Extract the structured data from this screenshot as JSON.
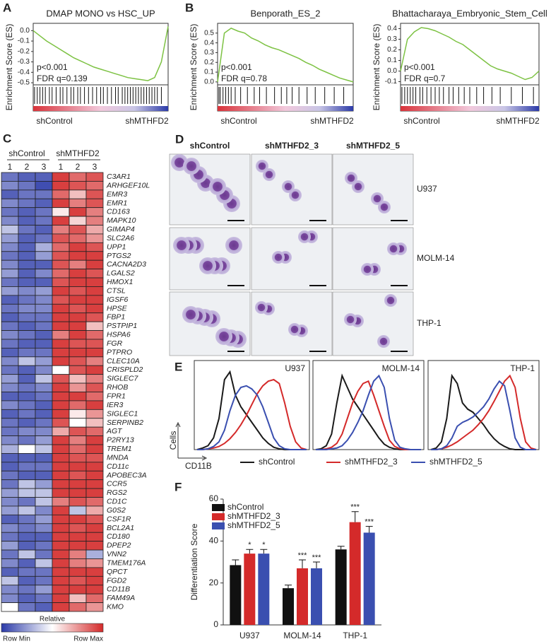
{
  "chart_data": [
    {
      "type": "gsea",
      "panel": "A",
      "title": "DMAP MONO vs HSC_UP",
      "ylabel": "Enrichment Score (ES)",
      "ylim": [
        -0.52,
        0.07
      ],
      "yticks": [
        {
          "value": 0,
          "label": "0.0"
        },
        -0.1,
        -0.2,
        -0.3,
        -0.4,
        -0.5
      ],
      "color": "#7dc243",
      "annotations": [
        "p<0.001",
        "FDR q=0.139"
      ],
      "xlabels": [
        "shControl",
        "shMTHFD2"
      ],
      "values": [
        0,
        -0.05,
        -0.1,
        -0.14,
        -0.18,
        -0.22,
        -0.26,
        -0.29,
        -0.32,
        -0.35,
        -0.37,
        -0.39,
        -0.41,
        -0.43,
        -0.45,
        -0.46,
        -0.47,
        -0.48,
        -0.45,
        -0.3,
        0.04
      ],
      "hits": [
        0.01,
        0.03,
        0.05,
        0.07,
        0.09,
        0.12,
        0.14,
        0.17,
        0.2,
        0.22,
        0.25,
        0.28,
        0.3,
        0.33,
        0.35,
        0.38,
        0.41,
        0.44,
        0.47,
        0.5,
        0.52,
        0.55,
        0.58,
        0.61,
        0.63,
        0.66,
        0.68,
        0.7,
        0.72,
        0.74,
        0.76,
        0.78,
        0.8,
        0.82,
        0.84,
        0.86,
        0.88,
        0.9,
        0.92,
        0.95
      ]
    },
    {
      "type": "gsea",
      "panel": "B",
      "title": "Benporath_ES_2",
      "ylabel": "Enrichment Score (ES)",
      "ylim": [
        -0.03,
        0.6
      ],
      "yticks": [
        {
          "value": 0,
          "label": "0.0"
        },
        0.1,
        0.2,
        0.3,
        0.4,
        0.5
      ],
      "color": "#7dc243",
      "annotations": [
        "p<0.001",
        "FDR q=0.78"
      ],
      "xlabels": [
        "shControl",
        "shMTHFD2"
      ],
      "values": [
        0,
        0.5,
        0.55,
        0.52,
        0.5,
        0.45,
        0.42,
        0.38,
        0.35,
        0.33,
        0.3,
        0.27,
        0.24,
        0.2,
        0.17,
        0.13,
        0.1,
        0.07,
        0.04,
        0.02,
        0
      ],
      "hits": [
        0.01,
        0.02,
        0.04,
        0.06,
        0.08,
        0.1,
        0.13,
        0.17,
        0.22,
        0.27,
        0.31,
        0.36,
        0.42,
        0.47,
        0.51,
        0.55,
        0.6,
        0.66,
        0.72,
        0.79,
        0.86,
        0.93
      ]
    },
    {
      "type": "gsea",
      "title": "Bhattacharaya_Embryonic_Stem_Cell",
      "ylabel": "Enrichment Score (ES)",
      "ylim": [
        -0.13,
        0.45
      ],
      "yticks": [
        -0.1,
        {
          "value": 0,
          "label": "0.0"
        },
        0.1,
        0.2,
        0.3,
        0.4
      ],
      "color": "#7dc243",
      "annotations": [
        "p<0.001",
        "FDR q=0.7"
      ],
      "xlabels": [
        "shControl",
        "shMTHFD2"
      ],
      "values": [
        0,
        0.3,
        0.37,
        0.41,
        0.4,
        0.38,
        0.35,
        0.32,
        0.28,
        0.25,
        0.2,
        0.15,
        0.1,
        0.05,
        0.02,
        0,
        -0.02,
        -0.05,
        -0.08,
        -0.06,
        0
      ],
      "hits": [
        0.01,
        0.03,
        0.05,
        0.07,
        0.09,
        0.11,
        0.14,
        0.16,
        0.19,
        0.22,
        0.25,
        0.28,
        0.31,
        0.35,
        0.38,
        0.42,
        0.46,
        0.5,
        0.55,
        0.6,
        0.66,
        0.72,
        0.8,
        0.88,
        0.96
      ]
    },
    {
      "type": "heatmap",
      "panel": "C",
      "groups": [
        "shControl",
        "shMTHFD2"
      ],
      "columns": [
        "1",
        "2",
        "3",
        "1",
        "2",
        "3"
      ],
      "vlim": [
        -1,
        1
      ],
      "colormap": [
        "#2b3aa8",
        "#ffffff",
        "#d42a2a"
      ],
      "highlight_color": "#d42a2a",
      "highlighted_rows": [
        2,
        3,
        4,
        19,
        33,
        39,
        47
      ],
      "legend_title": "Relative",
      "legend_labels": [
        "Row Min",
        "Row Max"
      ],
      "rows": [
        "C3AR1",
        "ARHGEF10L",
        "EMR3",
        "EMR1",
        "CD163",
        "MAPK10",
        "GIMAP4",
        "SLC2A6",
        "UPP1",
        "PTGS2",
        "CACNA2D3",
        "LGALS2",
        "HMOX1",
        "CTSL",
        "IGSF6",
        "HPSE",
        "FBP1",
        "PSTPIP1",
        "HSPA6",
        "FGR",
        "PTPRO",
        "CLEC10A",
        "CRISPLD2",
        "SIGLEC7",
        "RHOB",
        "FPR1",
        "IER3",
        "SIGLEC1",
        "SERPINB2",
        "AGT",
        "P2RY13",
        "TREM1",
        "MNDA",
        "CD11c",
        "APOBEC3A",
        "CCR5",
        "RGS2",
        "CD1C",
        "G0S2",
        "CSF1R",
        "BCL2A1",
        "CD180",
        "DPEP2",
        "VNN2",
        "TMEM176A",
        "QPCT",
        "FGD2",
        "CD11B",
        "FAM49A",
        "KMO"
      ],
      "values": [
        [
          -0.7,
          -0.8,
          -0.8,
          0.9,
          0.7,
          0.8
        ],
        [
          -0.6,
          -0.7,
          -0.9,
          0.9,
          0.8,
          0.7
        ],
        [
          -0.8,
          -0.7,
          -0.7,
          0.7,
          0.3,
          0.8
        ],
        [
          -0.6,
          -0.7,
          -0.8,
          0.9,
          0.6,
          0.8
        ],
        [
          -0.7,
          -0.8,
          -0.7,
          0.1,
          0.9,
          0.6
        ],
        [
          -0.6,
          -0.8,
          -0.7,
          0.9,
          0.2,
          0.6
        ],
        [
          -0.3,
          -0.7,
          -0.8,
          0.6,
          0.8,
          0.4
        ],
        [
          -0.5,
          -0.8,
          -0.7,
          0.8,
          0.7,
          0.5
        ],
        [
          -0.6,
          -0.8,
          -0.4,
          0.7,
          0.9,
          0.8
        ],
        [
          -0.7,
          -0.8,
          -0.5,
          0.8,
          0.9,
          0.9
        ],
        [
          -0.6,
          -0.8,
          -0.8,
          0.8,
          0.6,
          0.9
        ],
        [
          -0.5,
          -0.8,
          -0.6,
          0.7,
          0.9,
          0.8
        ],
        [
          -0.7,
          -0.8,
          -0.8,
          0.8,
          0.9,
          0.9
        ],
        [
          -0.5,
          -0.6,
          -0.5,
          0.9,
          0.8,
          0.9
        ],
        [
          -0.8,
          -0.7,
          -0.6,
          0.8,
          0.9,
          0.9
        ],
        [
          -0.7,
          -0.6,
          -0.6,
          0.9,
          0.8,
          0.9
        ],
        [
          -0.8,
          -0.7,
          -0.7,
          0.9,
          0.9,
          0.8
        ],
        [
          -0.7,
          -0.8,
          -0.7,
          0.9,
          0.9,
          0.3
        ],
        [
          -0.6,
          -0.7,
          -0.8,
          0.6,
          0.9,
          0.7
        ],
        [
          -0.7,
          -0.8,
          -0.8,
          0.9,
          0.8,
          0.8
        ],
        [
          -0.8,
          -0.7,
          -0.7,
          0.9,
          0.9,
          0.9
        ],
        [
          -0.6,
          -0.3,
          -0.5,
          0.9,
          0.8,
          0.6
        ],
        [
          -0.7,
          -0.8,
          -0.6,
          0,
          0.8,
          0.9
        ],
        [
          -0.5,
          -0.8,
          -0.3,
          0.8,
          0.3,
          0.6
        ],
        [
          -0.6,
          -0.7,
          -0.6,
          0.9,
          0.5,
          0.8
        ],
        [
          -0.8,
          -0.8,
          -0.7,
          0.9,
          0.9,
          0.7
        ],
        [
          -0.6,
          -0.7,
          -0.8,
          0.9,
          0.7,
          0.9
        ],
        [
          -0.8,
          -0.7,
          -0.8,
          0.9,
          0.1,
          0.5
        ],
        [
          -0.7,
          -0.8,
          -0.7,
          0.8,
          0,
          0.3
        ],
        [
          -0.7,
          -0.6,
          -0.6,
          0.4,
          0.8,
          0.7
        ],
        [
          -0.6,
          -0.7,
          -0.5,
          0.9,
          0.6,
          0.9
        ],
        [
          -0.4,
          0,
          -0.3,
          0.9,
          0.7,
          0.9
        ],
        [
          -0.8,
          -0.8,
          -0.8,
          0.9,
          0.8,
          0.8
        ],
        [
          -0.8,
          -0.7,
          -0.7,
          0.9,
          0.9,
          0.9
        ],
        [
          -0.7,
          -0.8,
          -0.8,
          0.9,
          0.8,
          0.9
        ],
        [
          -0.7,
          -0.3,
          -0.5,
          0.9,
          0.9,
          0.9
        ],
        [
          -0.5,
          -0.3,
          -0.3,
          0.9,
          0.9,
          0.9
        ],
        [
          -0.6,
          -0.7,
          -0.3,
          0.6,
          0.8,
          0.7
        ],
        [
          -0.5,
          -0.3,
          -0.6,
          0.9,
          -0.3,
          0.4
        ],
        [
          -0.8,
          -0.7,
          -0.5,
          0.9,
          0.9,
          0.8
        ],
        [
          -0.6,
          -0.7,
          -0.6,
          0.9,
          0.8,
          0.9
        ],
        [
          -0.7,
          -0.8,
          -0.8,
          0.9,
          0.9,
          0.9
        ],
        [
          -0.5,
          -0.8,
          -0.7,
          0.9,
          0.9,
          0.9
        ],
        [
          -0.7,
          -0.3,
          -0.7,
          0.9,
          0.6,
          -0.4
        ],
        [
          -0.6,
          -0.8,
          -0.3,
          0.9,
          0.6,
          0.5
        ],
        [
          -0.8,
          -0.7,
          -0.7,
          0.9,
          0.9,
          0.9
        ],
        [
          -0.3,
          -0.8,
          -0.7,
          0.9,
          0.8,
          0.9
        ],
        [
          -0.6,
          -0.7,
          -0.5,
          0.9,
          0.9,
          0.9
        ],
        [
          -0.6,
          -0.8,
          -0.7,
          0.9,
          0.3,
          0.7
        ],
        [
          0,
          -0.7,
          -0.8,
          0.9,
          0.7,
          0.5
        ]
      ]
    },
    {
      "type": "images",
      "panel": "D",
      "columns": [
        "shControl",
        "shMTHFD2_3",
        "shMTHFD2_5"
      ],
      "rows": [
        "U937",
        "MOLM-14",
        "THP-1"
      ]
    },
    {
      "type": "density",
      "panel": "E",
      "ylabel": "Cells",
      "xlabel": "CD11B",
      "ylim": [
        0,
        100
      ],
      "legend": [
        {
          "name": "shControl",
          "color": "#1a1a1a"
        },
        {
          "name": "shMTHFD2_3",
          "color": "#d42a2a"
        },
        {
          "name": "shMTHFD2_5",
          "color": "#3a4fb0"
        }
      ],
      "panels": [
        {
          "title": "U937",
          "series": [
            [
              0,
              2,
              5,
              15,
              40,
              90,
              100,
              70,
              55,
              45,
              35,
              25,
              15,
              8,
              3,
              1,
              0,
              0,
              0,
              0,
              0
            ],
            [
              0,
              0,
              1,
              2,
              4,
              8,
              14,
              22,
              32,
              44,
              58,
              72,
              82,
              88,
              90,
              85,
              60,
              30,
              10,
              2,
              0
            ],
            [
              0,
              0,
              1,
              4,
              10,
              25,
              50,
              70,
              80,
              82,
              78,
              70,
              55,
              35,
              15,
              5,
              1,
              0,
              0,
              0,
              0
            ]
          ]
        },
        {
          "title": "MOLM-14",
          "series": [
            [
              0,
              1,
              5,
              20,
              60,
              95,
              80,
              65,
              55,
              45,
              35,
              25,
              15,
              7,
              3,
              1,
              0,
              0,
              0,
              0,
              0
            ],
            [
              0,
              0,
              1,
              3,
              8,
              20,
              40,
              60,
              75,
              85,
              88,
              70,
              50,
              30,
              12,
              4,
              1,
              0,
              0,
              0,
              0
            ],
            [
              0,
              0,
              0,
              1,
              2,
              5,
              12,
              22,
              35,
              50,
              70,
              88,
              95,
              80,
              40,
              12,
              3,
              1,
              0,
              0,
              0
            ]
          ]
        },
        {
          "title": "THP-1",
          "series": [
            [
              0,
              2,
              10,
              40,
              95,
              85,
              60,
              52,
              48,
              40,
              32,
              22,
              14,
              8,
              4,
              1,
              0,
              0,
              0,
              0,
              0
            ],
            [
              0,
              0,
              1,
              3,
              6,
              10,
              15,
              20,
              25,
              32,
              40,
              50,
              62,
              75,
              88,
              95,
              80,
              40,
              10,
              2,
              0
            ],
            [
              0,
              0,
              1,
              5,
              15,
              30,
              35,
              38,
              42,
              48,
              55,
              65,
              78,
              88,
              82,
              50,
              15,
              3,
              0,
              0,
              0
            ]
          ]
        }
      ]
    },
    {
      "type": "bar",
      "panel": "F",
      "ylabel": "Differentiation Score",
      "ylim": [
        0,
        60
      ],
      "yticks": [
        0,
        20,
        40,
        60
      ],
      "categories": [
        "U937",
        "MOLM-14",
        "THP-1"
      ],
      "series": [
        {
          "name": "shControl",
          "color": "#111111",
          "values": [
            28.5,
            17.5,
            36
          ],
          "errors": [
            2.5,
            1.5,
            1.5
          ]
        },
        {
          "name": "shMTHFD2_3",
          "color": "#d42a2a",
          "values": [
            34,
            27,
            49
          ],
          "errors": [
            2,
            4,
            5
          ],
          "significance": [
            "*",
            "***",
            "***"
          ]
        },
        {
          "name": "shMTHFD2_5",
          "color": "#3a4fb0",
          "values": [
            34,
            27,
            44
          ],
          "errors": [
            2,
            3,
            3
          ],
          "significance": [
            "*",
            "***",
            "***"
          ]
        }
      ]
    }
  ]
}
